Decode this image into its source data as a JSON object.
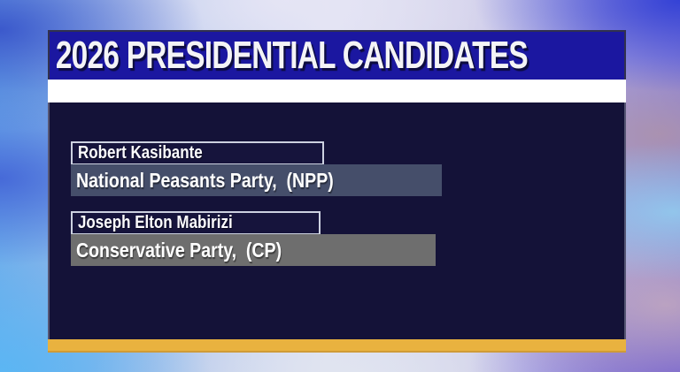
{
  "header": {
    "title": "2026 PRESIDENTIAL CANDIDATES"
  },
  "candidates": [
    {
      "name": "Robert Kasibante",
      "party": "National Peasants Party,  (NPP)"
    },
    {
      "name": "Joseph Elton Mabirizi",
      "party": "Conservative Party,  (CP)"
    }
  ],
  "colors": {
    "title_bar_blue": "#1b17a0",
    "panel_navy": "#141238",
    "party_bar_1": "#454e6a",
    "party_bar_2": "#6e6e6e",
    "accent_stripe_white": "#ffffff",
    "accent_bar_yellow": "#e9b23f",
    "text_white": "#ffffff"
  }
}
